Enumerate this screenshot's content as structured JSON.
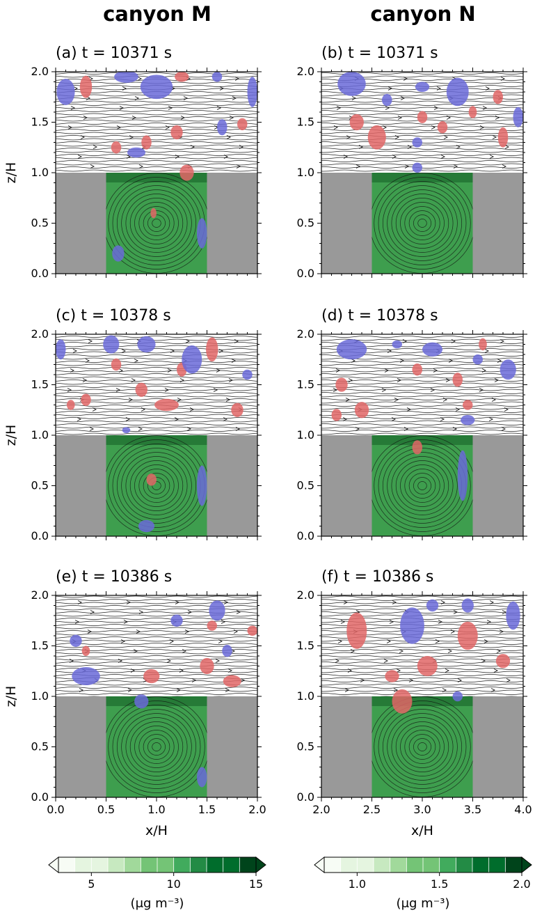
{
  "columns": [
    "canyon M",
    "canyon N"
  ],
  "colors": {
    "building": "#999999",
    "positive_anomaly": "#e06666",
    "negative_anomaly": "#6a6ad8",
    "canyon_fill": "#3e9e4e",
    "streamline": "#111111",
    "colormap": [
      "#f7fcf5",
      "#e5f5e0",
      "#c7e9c0",
      "#a1d99b",
      "#74c476",
      "#41ab5d",
      "#238b45",
      "#006d2c",
      "#00441b"
    ]
  },
  "chart_data": [
    {
      "type": "heatmap",
      "panel": "(a) t = 10371 s",
      "title": "(a) t = 10371 s",
      "xlabel": "x/H",
      "ylabel": "z/H",
      "xlim": [
        0.0,
        2.0
      ],
      "ylim": [
        0.0,
        2.0
      ],
      "xticks": [
        "0.0",
        "0.5",
        "1.0",
        "1.5",
        "2.0"
      ],
      "yticks": [
        "0.0",
        "0.5",
        "1.0",
        "1.5",
        "2.0"
      ],
      "buildings": [
        [
          0.0,
          0.5,
          1.0
        ],
        [
          1.5,
          2.0,
          1.0
        ]
      ],
      "canyon": [
        0.5,
        1.5
      ],
      "vortex_center": [
        1.0,
        0.5
      ],
      "positive_blobs": [
        [
          0.3,
          1.85,
          0.06,
          0.11
        ],
        [
          1.25,
          1.95,
          0.07,
          0.05
        ],
        [
          0.6,
          1.25,
          0.05,
          0.06
        ],
        [
          0.9,
          1.3,
          0.05,
          0.07
        ],
        [
          1.3,
          1.0,
          0.07,
          0.08
        ],
        [
          1.2,
          1.4,
          0.06,
          0.07
        ],
        [
          1.85,
          1.48,
          0.05,
          0.06
        ],
        [
          0.97,
          0.6,
          0.03,
          0.05
        ]
      ],
      "negative_blobs": [
        [
          0.1,
          1.8,
          0.09,
          0.13
        ],
        [
          0.7,
          1.95,
          0.12,
          0.06
        ],
        [
          0.8,
          1.2,
          0.09,
          0.05
        ],
        [
          1.6,
          1.95,
          0.05,
          0.05
        ],
        [
          1.65,
          1.45,
          0.05,
          0.08
        ],
        [
          1.0,
          1.85,
          0.16,
          0.12
        ],
        [
          1.45,
          0.4,
          0.05,
          0.15
        ],
        [
          0.62,
          0.2,
          0.06,
          0.08
        ],
        [
          1.95,
          1.8,
          0.05,
          0.15
        ]
      ]
    },
    {
      "type": "heatmap",
      "panel": "(b) t = 10371 s",
      "title": "(b) t = 10371 s",
      "xlabel": "x/H",
      "ylabel": "z/H",
      "xlim": [
        2.0,
        4.0
      ],
      "ylim": [
        0.0,
        2.0
      ],
      "xticks": [
        "2.0",
        "2.5",
        "3.0",
        "3.5",
        "4.0"
      ],
      "yticks": [
        "0.0",
        "0.5",
        "1.0",
        "1.5",
        "2.0"
      ],
      "buildings": [
        [
          2.0,
          2.5,
          1.0
        ],
        [
          3.5,
          4.0,
          1.0
        ]
      ],
      "canyon": [
        2.5,
        3.5
      ],
      "vortex_center": [
        3.0,
        0.5
      ],
      "positive_blobs": [
        [
          2.35,
          1.5,
          0.07,
          0.08
        ],
        [
          2.55,
          1.35,
          0.09,
          0.12
        ],
        [
          3.0,
          1.55,
          0.05,
          0.06
        ],
        [
          3.2,
          1.45,
          0.05,
          0.06
        ],
        [
          3.8,
          1.35,
          0.05,
          0.1
        ],
        [
          3.75,
          1.75,
          0.05,
          0.07
        ],
        [
          3.5,
          1.6,
          0.04,
          0.06
        ]
      ],
      "negative_blobs": [
        [
          2.3,
          1.88,
          0.14,
          0.12
        ],
        [
          3.35,
          1.8,
          0.11,
          0.14
        ],
        [
          2.65,
          1.72,
          0.05,
          0.06
        ],
        [
          3.0,
          1.85,
          0.07,
          0.05
        ],
        [
          2.95,
          1.3,
          0.05,
          0.05
        ],
        [
          3.95,
          1.55,
          0.05,
          0.1
        ],
        [
          2.95,
          1.05,
          0.05,
          0.05
        ]
      ]
    },
    {
      "type": "heatmap",
      "panel": "(c) t = 10378 s",
      "title": "(c) t = 10378 s",
      "xlabel": "x/H",
      "ylabel": "z/H",
      "xlim": [
        0.0,
        2.0
      ],
      "ylim": [
        0.0,
        2.0
      ],
      "xticks": [
        "0.0",
        "0.5",
        "1.0",
        "1.5",
        "2.0"
      ],
      "yticks": [
        "0.0",
        "0.5",
        "1.0",
        "1.5",
        "2.0"
      ],
      "buildings": [
        [
          0.0,
          0.5,
          1.0
        ],
        [
          1.5,
          2.0,
          1.0
        ]
      ],
      "canyon": [
        0.5,
        1.5
      ],
      "vortex_center": [
        1.0,
        0.5
      ],
      "positive_blobs": [
        [
          1.55,
          1.85,
          0.06,
          0.12
        ],
        [
          0.6,
          1.7,
          0.05,
          0.06
        ],
        [
          0.85,
          1.45,
          0.06,
          0.07
        ],
        [
          1.25,
          1.65,
          0.05,
          0.07
        ],
        [
          0.3,
          1.35,
          0.05,
          0.06
        ],
        [
          1.1,
          1.3,
          0.12,
          0.06
        ],
        [
          1.8,
          1.25,
          0.06,
          0.07
        ],
        [
          0.95,
          0.56,
          0.05,
          0.06
        ],
        [
          0.15,
          1.3,
          0.04,
          0.05
        ]
      ],
      "negative_blobs": [
        [
          0.55,
          1.9,
          0.08,
          0.09
        ],
        [
          1.35,
          1.75,
          0.1,
          0.14
        ],
        [
          0.9,
          1.9,
          0.09,
          0.08
        ],
        [
          0.05,
          1.85,
          0.05,
          0.1
        ],
        [
          1.45,
          0.5,
          0.05,
          0.2
        ],
        [
          0.9,
          0.1,
          0.08,
          0.06
        ],
        [
          0.7,
          1.05,
          0.04,
          0.03
        ],
        [
          1.9,
          1.6,
          0.05,
          0.05
        ]
      ]
    },
    {
      "type": "heatmap",
      "panel": "(d) t = 10378 s",
      "title": "(d) t = 10378 s",
      "xlabel": "x/H",
      "ylabel": "z/H",
      "xlim": [
        2.0,
        4.0
      ],
      "ylim": [
        0.0,
        2.0
      ],
      "xticks": [
        "2.0",
        "2.5",
        "3.0",
        "3.5",
        "4.0"
      ],
      "yticks": [
        "0.0",
        "0.5",
        "1.0",
        "1.5",
        "2.0"
      ],
      "buildings": [
        [
          2.0,
          2.5,
          1.0
        ],
        [
          3.5,
          4.0,
          1.0
        ]
      ],
      "canyon": [
        2.5,
        3.5
      ],
      "vortex_center": [
        3.0,
        0.5
      ],
      "positive_blobs": [
        [
          2.2,
          1.5,
          0.06,
          0.07
        ],
        [
          2.4,
          1.25,
          0.07,
          0.08
        ],
        [
          2.95,
          1.65,
          0.05,
          0.06
        ],
        [
          3.35,
          1.55,
          0.05,
          0.07
        ],
        [
          3.45,
          1.3,
          0.05,
          0.05
        ],
        [
          2.95,
          0.88,
          0.05,
          0.07
        ],
        [
          3.6,
          1.9,
          0.04,
          0.06
        ],
        [
          2.15,
          1.2,
          0.05,
          0.06
        ]
      ],
      "negative_blobs": [
        [
          2.3,
          1.85,
          0.15,
          0.1
        ],
        [
          3.1,
          1.85,
          0.1,
          0.07
        ],
        [
          3.85,
          1.65,
          0.08,
          0.1
        ],
        [
          3.45,
          1.15,
          0.07,
          0.05
        ],
        [
          3.55,
          1.75,
          0.05,
          0.05
        ],
        [
          3.4,
          0.6,
          0.05,
          0.25
        ],
        [
          2.75,
          1.9,
          0.05,
          0.04
        ]
      ]
    },
    {
      "type": "heatmap",
      "panel": "(e) t = 10386 s",
      "title": "(e) t = 10386 s",
      "xlabel": "x/H",
      "ylabel": "z/H",
      "xlim": [
        0.0,
        2.0
      ],
      "ylim": [
        0.0,
        2.0
      ],
      "xticks": [
        "0.0",
        "0.5",
        "1.0",
        "1.5",
        "2.0"
      ],
      "yticks": [
        "0.0",
        "0.5",
        "1.0",
        "1.5",
        "2.0"
      ],
      "buildings": [
        [
          0.0,
          0.5,
          1.0
        ],
        [
          1.5,
          2.0,
          1.0
        ]
      ],
      "canyon": [
        0.5,
        1.5
      ],
      "vortex_center": [
        1.0,
        0.5
      ],
      "positive_blobs": [
        [
          1.95,
          1.65,
          0.05,
          0.05
        ],
        [
          0.95,
          1.2,
          0.08,
          0.07
        ],
        [
          1.5,
          1.3,
          0.07,
          0.08
        ],
        [
          1.55,
          1.7,
          0.05,
          0.05
        ],
        [
          1.75,
          1.15,
          0.09,
          0.06
        ],
        [
          0.3,
          1.45,
          0.04,
          0.05
        ]
      ],
      "negative_blobs": [
        [
          0.3,
          1.2,
          0.14,
          0.09
        ],
        [
          0.2,
          1.55,
          0.06,
          0.06
        ],
        [
          1.6,
          1.85,
          0.08,
          0.1
        ],
        [
          1.2,
          1.75,
          0.06,
          0.06
        ],
        [
          0.85,
          0.95,
          0.07,
          0.07
        ],
        [
          1.45,
          0.2,
          0.05,
          0.1
        ],
        [
          1.7,
          1.45,
          0.05,
          0.06
        ]
      ]
    },
    {
      "type": "heatmap",
      "panel": "(f) t = 10386 s",
      "title": "(f) t = 10386 s",
      "xlabel": "x/H",
      "ylabel": "z/H",
      "xlim": [
        2.0,
        4.0
      ],
      "ylim": [
        0.0,
        2.0
      ],
      "xticks": [
        "2.0",
        "2.5",
        "3.0",
        "3.5",
        "4.0"
      ],
      "yticks": [
        "0.0",
        "0.5",
        "1.0",
        "1.5",
        "2.0"
      ],
      "buildings": [
        [
          2.0,
          2.5,
          1.0
        ],
        [
          3.5,
          4.0,
          1.0
        ]
      ],
      "canyon": [
        2.5,
        3.5
      ],
      "vortex_center": [
        3.0,
        0.5
      ],
      "positive_blobs": [
        [
          2.35,
          1.65,
          0.1,
          0.18
        ],
        [
          3.45,
          1.6,
          0.1,
          0.14
        ],
        [
          3.05,
          1.3,
          0.1,
          0.1
        ],
        [
          3.8,
          1.35,
          0.07,
          0.07
        ],
        [
          2.8,
          0.95,
          0.1,
          0.12
        ],
        [
          2.7,
          1.2,
          0.07,
          0.06
        ]
      ],
      "negative_blobs": [
        [
          2.9,
          1.7,
          0.12,
          0.18
        ],
        [
          3.9,
          1.8,
          0.07,
          0.14
        ],
        [
          3.45,
          1.9,
          0.06,
          0.07
        ],
        [
          3.1,
          1.9,
          0.06,
          0.06
        ],
        [
          3.35,
          1.0,
          0.05,
          0.05
        ]
      ]
    }
  ],
  "colorbars": [
    {
      "label": "(μg m⁻³)",
      "ticks": [
        "5",
        "10",
        "15"
      ],
      "tick_values": [
        5,
        10,
        15
      ],
      "range": [
        3,
        15
      ],
      "levels": 12
    },
    {
      "label": "(μg m⁻³)",
      "ticks": [
        "1.0",
        "1.5",
        "2.0"
      ],
      "tick_values": [
        1.0,
        1.5,
        2.0
      ],
      "range": [
        0.8,
        2.0
      ],
      "levels": 12
    }
  ]
}
